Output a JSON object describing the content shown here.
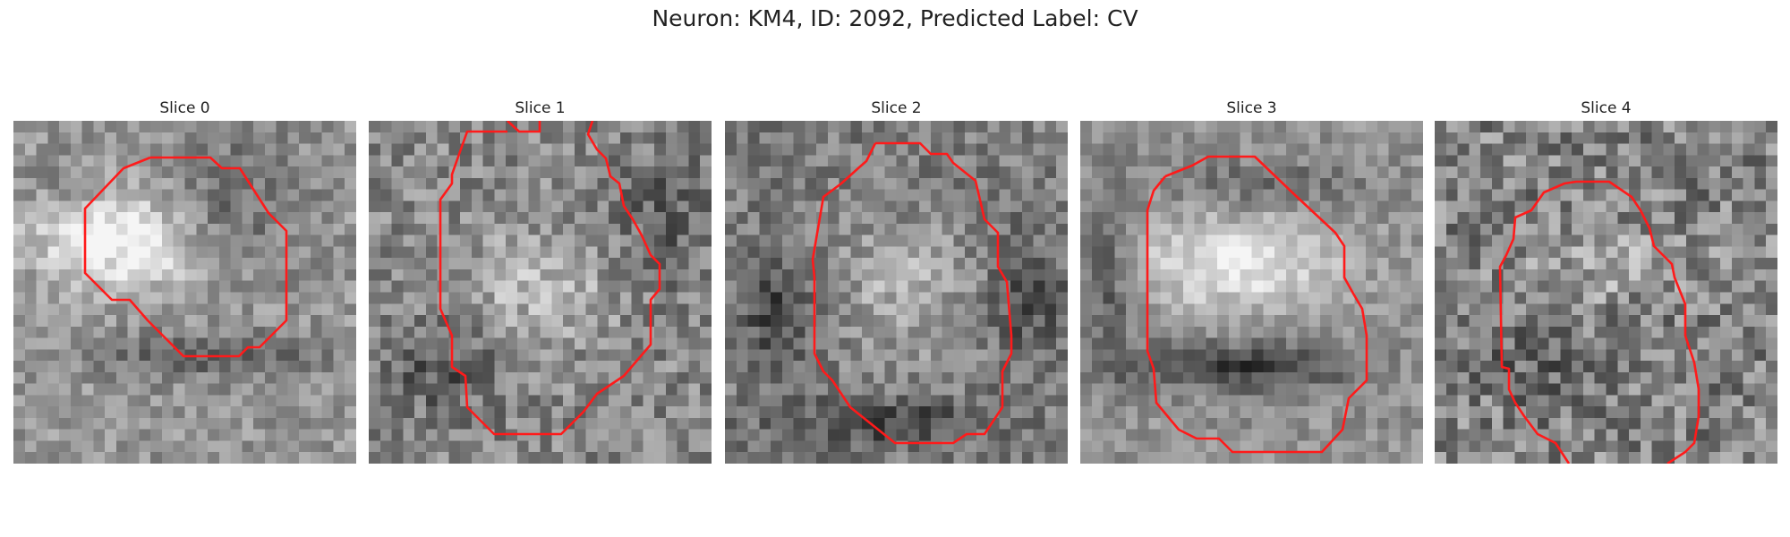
{
  "figure": {
    "title": "Neuron: KM4, ID: 2092, Predicted Label: CV"
  },
  "panels": [
    {
      "title": "Slice 0"
    },
    {
      "title": "Slice 1"
    },
    {
      "title": "Slice 2"
    },
    {
      "title": "Slice 3"
    },
    {
      "title": "Slice 4"
    }
  ],
  "colors": {
    "contour": "#ff1a1a",
    "background": "#ffffff",
    "text": "#222222"
  }
}
